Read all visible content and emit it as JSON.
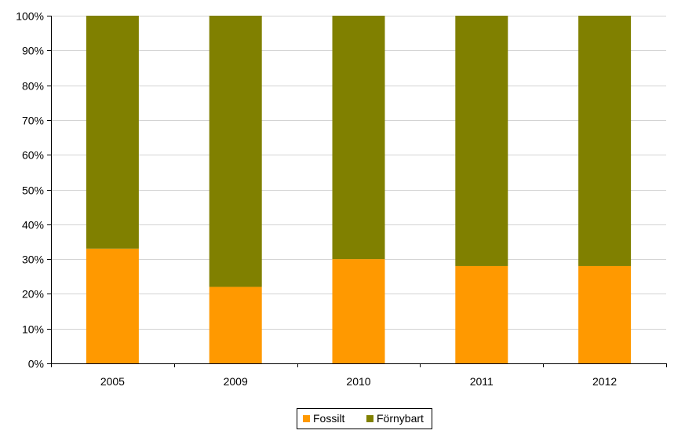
{
  "chart_data": {
    "type": "bar",
    "stacked": true,
    "categories": [
      "2005",
      "2009",
      "2010",
      "2011",
      "2012"
    ],
    "series": [
      {
        "name": "Fossilt",
        "color": "#FF9900",
        "values": [
          33,
          22,
          30,
          28,
          28
        ]
      },
      {
        "name": "Förnybart",
        "color": "#808000",
        "values": [
          67,
          78,
          70,
          72,
          72
        ]
      }
    ],
    "ylim": [
      0,
      100
    ],
    "yticks": [
      "0%",
      "10%",
      "20%",
      "30%",
      "40%",
      "50%",
      "60%",
      "70%",
      "80%",
      "90%",
      "100%"
    ],
    "grid": true,
    "legend_position": "bottom",
    "title": "",
    "xlabel": "",
    "ylabel": ""
  }
}
